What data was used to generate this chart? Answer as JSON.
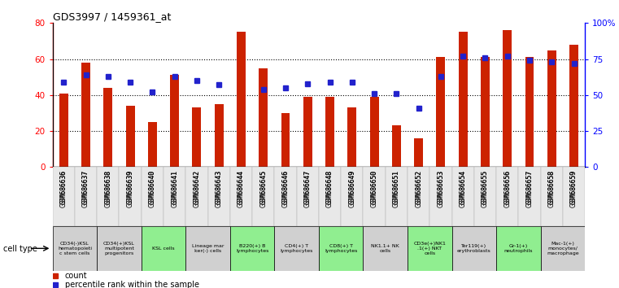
{
  "title": "GDS3997 / 1459361_at",
  "samples": [
    "GSM686636",
    "GSM686637",
    "GSM686638",
    "GSM686639",
    "GSM686640",
    "GSM686641",
    "GSM686642",
    "GSM686643",
    "GSM686644",
    "GSM686645",
    "GSM686646",
    "GSM686647",
    "GSM686648",
    "GSM686649",
    "GSM686650",
    "GSM686651",
    "GSM686652",
    "GSM686653",
    "GSM686654",
    "GSM686655",
    "GSM686656",
    "GSM686657",
    "GSM686658",
    "GSM686659"
  ],
  "counts": [
    41,
    58,
    44,
    34,
    25,
    51,
    33,
    35,
    75,
    55,
    30,
    39,
    39,
    33,
    39,
    23,
    16,
    61,
    75,
    61,
    76,
    61,
    65,
    68
  ],
  "percentiles": [
    59,
    64,
    63,
    59,
    52,
    63,
    60,
    57,
    null,
    54,
    55,
    58,
    59,
    59,
    51,
    51,
    41,
    63,
    77,
    76,
    77,
    74,
    73,
    72
  ],
  "cell_types": [
    {
      "label": "CD34(-)KSL\nhematopoieti\nc stem cells",
      "start": 0,
      "end": 2,
      "color": "#d0d0d0"
    },
    {
      "label": "CD34(+)KSL\nmultipotent\nprogenitors",
      "start": 2,
      "end": 4,
      "color": "#d0d0d0"
    },
    {
      "label": "KSL cells",
      "start": 4,
      "end": 6,
      "color": "#90ee90"
    },
    {
      "label": "Lineage mar\nker(-) cells",
      "start": 6,
      "end": 8,
      "color": "#d0d0d0"
    },
    {
      "label": "B220(+) B\nlymphocytes",
      "start": 8,
      "end": 10,
      "color": "#90ee90"
    },
    {
      "label": "CD4(+) T\nlymphocytes",
      "start": 10,
      "end": 12,
      "color": "#d0d0d0"
    },
    {
      "label": "CD8(+) T\nlymphocytes",
      "start": 12,
      "end": 14,
      "color": "#90ee90"
    },
    {
      "label": "NK1.1+ NK\ncells",
      "start": 14,
      "end": 16,
      "color": "#d0d0d0"
    },
    {
      "label": "CD3e(+)NK1\n.1(+) NKT\ncells",
      "start": 16,
      "end": 18,
      "color": "#90ee90"
    },
    {
      "label": "Ter119(+)\nerythroblasts",
      "start": 18,
      "end": 20,
      "color": "#d0d0d0"
    },
    {
      "label": "Gr-1(+)\nneutrophils",
      "start": 20,
      "end": 22,
      "color": "#90ee90"
    },
    {
      "label": "Mac-1(+)\nmonocytes/\nmacrophage",
      "start": 22,
      "end": 24,
      "color": "#d0d0d0"
    }
  ],
  "bar_color": "#cc2200",
  "dot_color": "#2222cc",
  "ylim_left": [
    0,
    80
  ],
  "ylim_right": [
    0,
    100
  ],
  "yticks_left": [
    0,
    20,
    40,
    60,
    80
  ],
  "yticks_right": [
    0,
    25,
    50,
    75,
    100
  ],
  "grid_lines": [
    20,
    40,
    60
  ],
  "bar_width": 0.4
}
